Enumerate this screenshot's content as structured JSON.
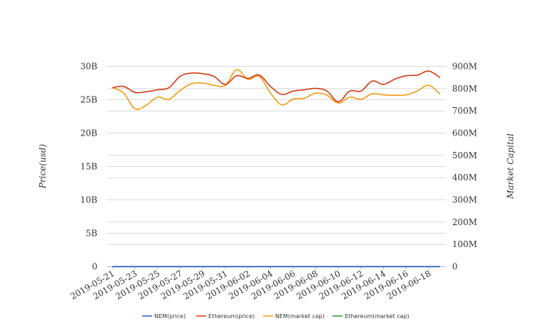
{
  "chart_data": {
    "type": "line",
    "x": [
      "2019-05-21",
      "2019-05-22",
      "2019-05-23",
      "2019-05-24",
      "2019-05-25",
      "2019-05-26",
      "2019-05-27",
      "2019-05-28",
      "2019-05-29",
      "2019-05-30",
      "2019-05-31",
      "2019-06-01",
      "2019-06-02",
      "2019-06-03",
      "2019-06-04",
      "2019-06-05",
      "2019-06-06",
      "2019-06-07",
      "2019-06-08",
      "2019-06-09",
      "2019-06-10",
      "2019-06-11",
      "2019-06-12",
      "2019-06-13",
      "2019-06-14",
      "2019-06-15",
      "2019-06-16",
      "2019-06-17",
      "2019-06-18",
      "2019-06-19"
    ],
    "x_tick_labels": [
      "2019-05-21",
      "2019-05-23",
      "2019-05-25",
      "2019-05-27",
      "2019-05-29",
      "2019-05-31",
      "2019-06-02",
      "2019-06-04",
      "2019-06-06",
      "2019-06-08",
      "2019-06-10",
      "2019-06-12",
      "2019-06-14",
      "2019-06-16",
      "2019-06-18"
    ],
    "ylabel_left": "Price(usd)",
    "ylabel_right": "Market Capital",
    "y_left": {
      "min": 0,
      "max": 30000000000,
      "ticks": [
        0,
        5000000000,
        10000000000,
        15000000000,
        20000000000,
        25000000000,
        30000000000
      ],
      "tick_labels": [
        "0",
        "5B",
        "10B",
        "15B",
        "20B",
        "25B",
        "30B"
      ]
    },
    "y_right": {
      "min": 0,
      "max": 900000000,
      "ticks": [
        0,
        100000000,
        200000000,
        300000000,
        400000000,
        500000000,
        600000000,
        700000000,
        800000000,
        900000000
      ],
      "tick_labels": [
        "0",
        "100M",
        "200M",
        "300M",
        "400M",
        "500M",
        "600M",
        "700M",
        "800M",
        "900M"
      ]
    },
    "grid": true,
    "legend_position": "bottom",
    "series": [
      {
        "name": "NEM(price)",
        "axis": "left",
        "color": "#2a4fd6",
        "values": [
          0.08,
          0.08,
          0.08,
          0.08,
          0.08,
          0.08,
          0.08,
          0.08,
          0.08,
          0.08,
          0.08,
          0.08,
          0.08,
          0.08,
          0.08,
          0.08,
          0.08,
          0.08,
          0.08,
          0.08,
          0.08,
          0.08,
          0.08,
          0.08,
          0.08,
          0.08,
          0.08,
          0.08,
          0.08,
          0.08
        ]
      },
      {
        "name": "Ethereum(price)",
        "axis": "left",
        "color": "#d6380f",
        "values": [
          26800000000,
          27000000000,
          26100000000,
          26200000000,
          26500000000,
          26800000000,
          28500000000,
          29000000000,
          28900000000,
          28500000000,
          27300000000,
          28600000000,
          28200000000,
          28700000000,
          27000000000,
          25800000000,
          26300000000,
          26500000000,
          26700000000,
          26300000000,
          24700000000,
          26300000000,
          26300000000,
          27800000000,
          27300000000,
          28100000000,
          28600000000,
          28700000000,
          29300000000,
          28300000000
        ]
      },
      {
        "name": "NEM(market cap)",
        "axis": "right",
        "color": "#f59a12",
        "values": [
          805000000,
          780000000,
          710000000,
          725000000,
          762000000,
          752000000,
          792000000,
          822000000,
          825000000,
          815000000,
          815000000,
          885000000,
          842000000,
          855000000,
          780000000,
          727000000,
          753000000,
          757000000,
          780000000,
          770000000,
          735000000,
          762000000,
          752000000,
          777000000,
          772000000,
          770000000,
          772000000,
          790000000,
          815000000,
          775000000
        ]
      },
      {
        "name": "Ethereum(market cap)",
        "axis": "right",
        "color": "#1f9a1f",
        "values": [
          20,
          20,
          20,
          20,
          20,
          20,
          20,
          20,
          20,
          20,
          20,
          20,
          20,
          20,
          20,
          20,
          20,
          20,
          20,
          20,
          20,
          20,
          20,
          20,
          20,
          20,
          20,
          20,
          20,
          20
        ]
      }
    ]
  }
}
